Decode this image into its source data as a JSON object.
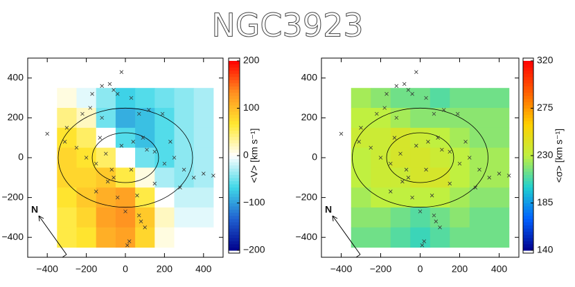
{
  "title": "NGC3923",
  "chart_data": [
    {
      "type": "heatmap",
      "colorbar_label": "<V> [km s⁻¹]",
      "xlim": [
        -500,
        500
      ],
      "ylim": [
        -500,
        500
      ],
      "xticks": [
        {
          "value": -400,
          "label": "−400"
        },
        {
          "value": -200,
          "label": "−200"
        },
        0,
        200,
        400
      ],
      "yticks": [
        {
          "value": -400,
          "label": "−400"
        },
        {
          "value": -200,
          "label": "−200"
        },
        0,
        200,
        400
      ],
      "clim": [
        -200,
        200
      ],
      "cticks": [
        {
          "value": -200,
          "label": "−200"
        },
        {
          "value": -100,
          "label": "−100"
        },
        0,
        100,
        200
      ],
      "colormap": [
        "#00008c",
        "#2060d0",
        "#40d8e8",
        "#ffffff",
        "#ffe830",
        "#ff9020",
        "#ff0000"
      ],
      "x_edges": [
        -350,
        -250,
        -150,
        -50,
        50,
        150,
        250,
        350,
        450
      ],
      "y_edges": [
        350,
        250,
        150,
        50,
        -50,
        -150,
        -250,
        -350,
        -450
      ],
      "values": [
        [
          10,
          -10,
          -40,
          -70,
          -60,
          -50,
          -40,
          -30
        ],
        [
          40,
          20,
          -50,
          -90,
          -80,
          -60,
          -40,
          -30
        ],
        [
          70,
          50,
          0,
          -60,
          -80,
          -60,
          -40,
          -30
        ],
        [
          80,
          70,
          50,
          0,
          -50,
          -60,
          -40,
          -30
        ],
        [
          80,
          80,
          90,
          60,
          10,
          -30,
          -40,
          -30
        ],
        [
          70,
          90,
          110,
          120,
          60,
          0,
          -20,
          -20
        ],
        [
          60,
          80,
          120,
          130,
          90,
          20,
          -10,
          -10
        ],
        [
          60,
          70,
          110,
          120,
          80,
          10,
          0,
          0
        ]
      ],
      "points_x": [
        -20,
        -120,
        -80,
        -60,
        -170,
        -40,
        30,
        70,
        120,
        190,
        -180,
        -120,
        -220,
        -300,
        -400,
        -310,
        -250,
        -200,
        -150,
        -100,
        -70,
        -20,
        40,
        90,
        150,
        200,
        250,
        300,
        350,
        400,
        450,
        280,
        150,
        60,
        -40,
        -90,
        -150,
        0,
        70,
        80,
        100,
        20,
        10,
        -60,
        30,
        110,
        -130,
        230
      ],
      "points_y": [
        430,
        360,
        370,
        340,
        320,
        320,
        300,
        220,
        240,
        220,
        250,
        200,
        220,
        150,
        120,
        80,
        50,
        0,
        -30,
        20,
        -60,
        60,
        80,
        100,
        30,
        -30,
        0,
        -60,
        -100,
        -80,
        -90,
        -150,
        -130,
        -190,
        -200,
        -120,
        -170,
        -270,
        -290,
        -320,
        -350,
        -420,
        -440,
        -100,
        -60,
        40,
        100,
        80
      ],
      "ellipses": [
        {
          "rx": 170,
          "ry": 125
        },
        {
          "rx": 344,
          "ry": 249
        }
      ],
      "compass": "N"
    },
    {
      "type": "heatmap",
      "colorbar_label": "<σ> [km s⁻¹]",
      "xlim": [
        -500,
        500
      ],
      "ylim": [
        -500,
        500
      ],
      "xticks": [
        {
          "value": -400,
          "label": "−400"
        },
        {
          "value": -200,
          "label": "−200"
        },
        0,
        200,
        400
      ],
      "yticks": [
        {
          "value": -400,
          "label": "−400"
        },
        {
          "value": -200,
          "label": "−200"
        },
        0,
        200,
        400
      ],
      "clim": [
        140,
        320
      ],
      "cticks": [
        140,
        185,
        230,
        275,
        320
      ],
      "colormap": [
        "#00008c",
        "#0060ff",
        "#20d0d0",
        "#c0f040",
        "#ffd000",
        "#ff6000",
        "#ff0000"
      ],
      "x_edges": [
        -350,
        -250,
        -150,
        -50,
        50,
        150,
        250,
        350,
        450
      ],
      "y_edges": [
        350,
        250,
        150,
        50,
        -50,
        -150,
        -250,
        -350,
        -450
      ],
      "values": [
        [
          225,
          220,
          215,
          215,
          210,
          215,
          215,
          215
        ],
        [
          230,
          230,
          225,
          220,
          220,
          220,
          220,
          220
        ],
        [
          235,
          235,
          240,
          235,
          230,
          225,
          220,
          220
        ],
        [
          230,
          235,
          240,
          240,
          235,
          230,
          225,
          225
        ],
        [
          230,
          235,
          235,
          240,
          240,
          230,
          225,
          225
        ],
        [
          225,
          230,
          230,
          230,
          230,
          225,
          220,
          220
        ],
        [
          220,
          220,
          215,
          210,
          215,
          220,
          215,
          215
        ],
        [
          215,
          215,
          210,
          205,
          210,
          215,
          215,
          215
        ]
      ],
      "points_x": [
        -20,
        -120,
        -80,
        -60,
        -170,
        -40,
        30,
        70,
        120,
        190,
        -180,
        -120,
        -220,
        -300,
        -400,
        -310,
        -250,
        -200,
        -150,
        -100,
        -70,
        -20,
        40,
        90,
        150,
        200,
        250,
        300,
        350,
        400,
        450,
        280,
        150,
        60,
        -40,
        -90,
        -150,
        0,
        70,
        80,
        100,
        20,
        10,
        -60,
        30,
        110,
        -130,
        230
      ],
      "points_y": [
        430,
        360,
        370,
        340,
        320,
        320,
        300,
        220,
        240,
        220,
        250,
        200,
        220,
        150,
        120,
        80,
        50,
        0,
        -30,
        20,
        -60,
        60,
        80,
        100,
        30,
        -30,
        0,
        -60,
        -100,
        -80,
        -90,
        -150,
        -130,
        -190,
        -200,
        -120,
        -170,
        -270,
        -290,
        -320,
        -350,
        -420,
        -440,
        -100,
        -60,
        40,
        100,
        80
      ],
      "ellipses": [
        {
          "rx": 170,
          "ry": 125
        },
        {
          "rx": 344,
          "ry": 249
        }
      ],
      "compass": "N"
    }
  ]
}
